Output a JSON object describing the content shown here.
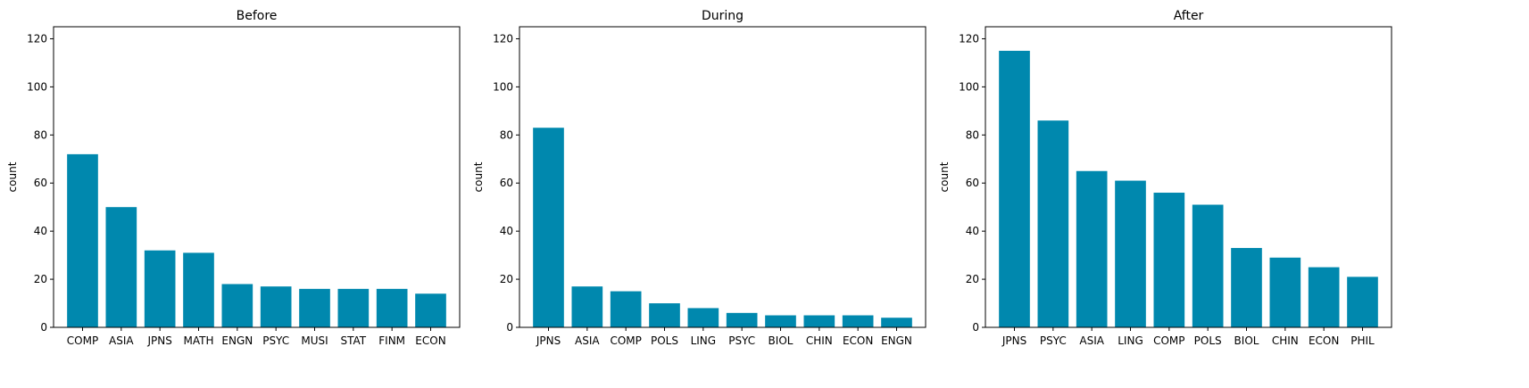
{
  "chart_data": [
    {
      "type": "bar",
      "title": "Before",
      "xlabel": "",
      "ylabel": "count",
      "ylim": [
        0,
        125
      ],
      "yticks": [
        0,
        20,
        40,
        60,
        80,
        100,
        120
      ],
      "categories": [
        "COMP",
        "ASIA",
        "JPNS",
        "MATH",
        "ENGN",
        "PSYC",
        "MUSI",
        "STAT",
        "FINM",
        "ECON"
      ],
      "values": [
        72,
        50,
        32,
        31,
        18,
        17,
        16,
        16,
        16,
        14
      ],
      "color": "#0088AE"
    },
    {
      "type": "bar",
      "title": "During",
      "xlabel": "",
      "ylabel": "count",
      "ylim": [
        0,
        125
      ],
      "yticks": [
        0,
        20,
        40,
        60,
        80,
        100,
        120
      ],
      "categories": [
        "JPNS",
        "ASIA",
        "COMP",
        "POLS",
        "LING",
        "PSYC",
        "BIOL",
        "CHIN",
        "ECON",
        "ENGN"
      ],
      "values": [
        83,
        17,
        15,
        10,
        8,
        6,
        5,
        5,
        5,
        4
      ],
      "color": "#0088AE"
    },
    {
      "type": "bar",
      "title": "After",
      "xlabel": "",
      "ylabel": "count",
      "ylim": [
        0,
        125
      ],
      "yticks": [
        0,
        20,
        40,
        60,
        80,
        100,
        120
      ],
      "categories": [
        "JPNS",
        "PSYC",
        "ASIA",
        "LING",
        "COMP",
        "POLS",
        "BIOL",
        "CHIN",
        "ECON",
        "PHIL"
      ],
      "values": [
        115,
        86,
        65,
        61,
        56,
        51,
        33,
        29,
        25,
        21
      ],
      "color": "#0088AE"
    }
  ]
}
